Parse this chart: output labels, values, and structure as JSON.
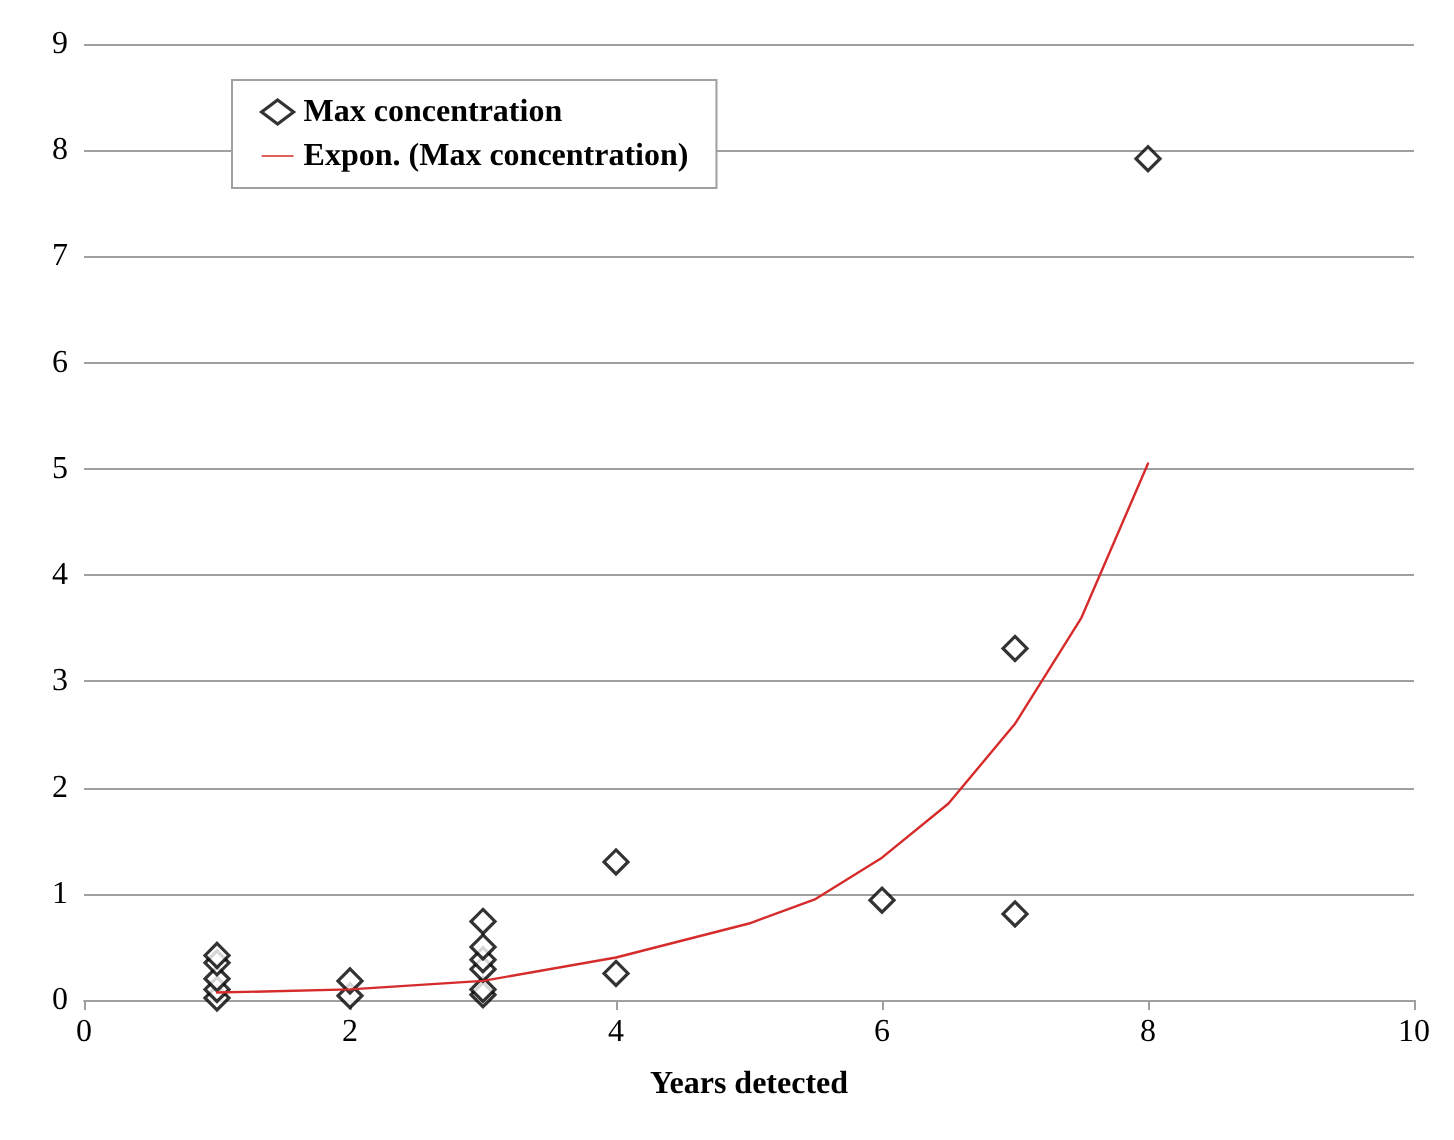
{
  "chart_data": {
    "type": "scatter",
    "xlabel": "Years detected",
    "xlim": [
      0,
      10
    ],
    "xticks": [
      0,
      2,
      4,
      6,
      8,
      10
    ],
    "ylim": [
      0,
      9
    ],
    "yticks": [
      0,
      1,
      2,
      3,
      4,
      5,
      6,
      7,
      8,
      9
    ],
    "grid": "y",
    "legend": "top left",
    "series": [
      {
        "name": "Max concentration",
        "marker": "diamond",
        "color": "#000000",
        "x": [
          1,
          1,
          1,
          1,
          1,
          2,
          2,
          3,
          3,
          3,
          3,
          3,
          3,
          4,
          4,
          6,
          7,
          7,
          8
        ],
        "values": [
          0.02,
          0.1,
          0.2,
          0.35,
          0.42,
          0.04,
          0.18,
          0.05,
          0.1,
          0.29,
          0.38,
          0.5,
          0.74,
          0.25,
          1.3,
          0.94,
          0.81,
          3.31,
          7.92
        ]
      },
      {
        "name": "Expon. (Max concentration)",
        "type": "line",
        "marker": "none",
        "line_style": "solid",
        "color": "#d62b2b",
        "x": [
          1,
          2,
          3,
          4,
          5,
          5.5,
          6,
          6.5,
          7,
          7.5,
          8
        ],
        "values": [
          0.07,
          0.1,
          0.18,
          0.4,
          0.72,
          0.95,
          1.34,
          1.85,
          2.6,
          3.6,
          5.05
        ]
      }
    ]
  }
}
